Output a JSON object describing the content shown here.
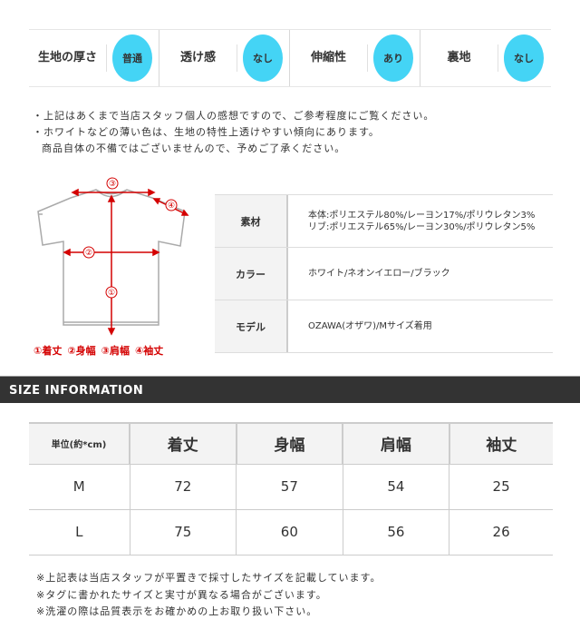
{
  "attributes": [
    {
      "label": "生地の厚さ",
      "value": "普通"
    },
    {
      "label": "透け感",
      "value": "なし"
    },
    {
      "label": "伸縮性",
      "value": "あり"
    },
    {
      "label": "裏地",
      "value": "なし"
    }
  ],
  "accent_color": "#44d4f5",
  "notes": [
    "・上記はあくまで当店スタッフ個人の感想ですので、ご参考程度にご覧ください。",
    "・ホワイトなどの薄い色は、生地の特性上透けやすい傾向にあります。",
    "商品自体の不備ではございませんので、予めご了承ください。"
  ],
  "diagram": {
    "markers": [
      "③",
      "④",
      "②",
      "①"
    ],
    "legend": [
      "①着丈",
      "②身幅",
      "③肩幅",
      "④袖丈"
    ],
    "marker_color": "#d40000"
  },
  "spec": [
    {
      "key": "素材",
      "values": [
        "本体:ポリエステル80%/レーヨン17%/ポリウレタン3%",
        "リブ:ポリエステル65%/レーヨン30%/ポリウレタン5%"
      ]
    },
    {
      "key": "カラー",
      "values": [
        "ホワイト/ネオンイエロー/ブラック"
      ]
    },
    {
      "key": "モデル",
      "values": [
        "OZAWA(オザワ)/Mサイズ着用"
      ]
    }
  ],
  "size_info_title": "SIZE INFORMATION",
  "size_table": {
    "headers": [
      "単位(約*cm)",
      "着丈",
      "身幅",
      "肩幅",
      "袖丈"
    ],
    "rows": [
      [
        "M",
        "72",
        "57",
        "54",
        "25"
      ],
      [
        "L",
        "75",
        "60",
        "56",
        "26"
      ]
    ]
  },
  "footnotes": [
    "※上記表は当店スタッフが平置きで採寸したサイズを記載しています。",
    "※タグに書かれたサイズと実寸が異なる場合がございます。",
    "※洗濯の際は品質表示をお確かめの上お取り扱い下さい。"
  ]
}
